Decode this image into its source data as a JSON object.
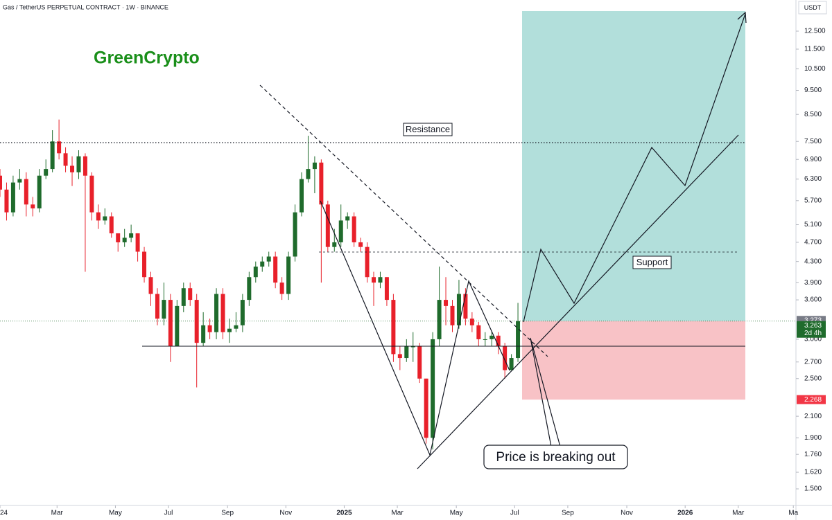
{
  "chart_data": {
    "type": "candlestick",
    "title": "Gas / TetherUS PERPETUAL CONTRACT · 1W · BINANCE",
    "watermark": "GreenCrypto",
    "y_unit": "USDT",
    "log_scale": true,
    "up_color": "#1f6b2c",
    "down_color": "#e8202a",
    "xlim": [
      0,
      121.4
    ],
    "ylim": [
      1.389,
      14.44
    ],
    "xticks": [
      {
        "value": 0,
        "label": "24"
      },
      {
        "value": 8.7,
        "label": "Mar"
      },
      {
        "value": 17.6,
        "label": "May"
      },
      {
        "value": 25.7,
        "label": "Jul"
      },
      {
        "value": 34.7,
        "label": "Sep"
      },
      {
        "value": 43.6,
        "label": "Nov"
      },
      {
        "value": 52.5,
        "label": "2025"
      },
      {
        "value": 60.6,
        "label": "Mar"
      },
      {
        "value": 69.6,
        "label": "May"
      },
      {
        "value": 78.5,
        "label": "Jul"
      },
      {
        "value": 86.6,
        "label": "Sep"
      },
      {
        "value": 95.6,
        "label": "Nov"
      },
      {
        "value": 104.5,
        "label": "2026"
      },
      {
        "value": 112.6,
        "label": "Mar"
      },
      {
        "value": 121,
        "label": "Ma"
      }
    ],
    "yticks": [
      {
        "value": 12.5,
        "label": "12.500"
      },
      {
        "value": 11.5,
        "label": "11.500"
      },
      {
        "value": 10.5,
        "label": "10.500"
      },
      {
        "value": 9.5,
        "label": "9.500"
      },
      {
        "value": 8.5,
        "label": "8.500"
      },
      {
        "value": 7.5,
        "label": "7.500"
      },
      {
        "value": 6.9,
        "label": "6.900"
      },
      {
        "value": 6.3,
        "label": "6.300"
      },
      {
        "value": 5.7,
        "label": "5.700"
      },
      {
        "value": 5.1,
        "label": "5.100"
      },
      {
        "value": 4.7,
        "label": "4.700"
      },
      {
        "value": 4.3,
        "label": "4.300"
      },
      {
        "value": 3.9,
        "label": "3.900"
      },
      {
        "value": 3.6,
        "label": "3.600"
      },
      {
        "value": 3,
        "label": "3.000"
      },
      {
        "value": 2.7,
        "label": "2.700"
      },
      {
        "value": 2.5,
        "label": "2.500"
      },
      {
        "value": 2.1,
        "label": "2.100"
      },
      {
        "value": 1.9,
        "label": "1.900"
      },
      {
        "value": 1.76,
        "label": "1.760"
      },
      {
        "value": 1.62,
        "label": "1.620"
      },
      {
        "value": 1.5,
        "label": "1.500"
      }
    ],
    "price_labels": [
      {
        "value": 3.273,
        "color": "#787b86"
      },
      {
        "value": 3.263,
        "color": "#1f6b2c",
        "countdown": "2d 4h"
      },
      {
        "value": 2.268,
        "color": "#f23645"
      }
    ],
    "annotations": [
      "Resistance",
      "Support",
      "Price is breaking out"
    ],
    "x": [
      0,
      1,
      2,
      3,
      4,
      5,
      6,
      7,
      8,
      9,
      10,
      11,
      12,
      13,
      14,
      15,
      16,
      17,
      18,
      19,
      20,
      21,
      22,
      23,
      24,
      25,
      26,
      27,
      28,
      29,
      30,
      31,
      32,
      33,
      34,
      35,
      36,
      37,
      38,
      39,
      40,
      41,
      42,
      43,
      44,
      45,
      46,
      47,
      48,
      49,
      50,
      51,
      52,
      53,
      54,
      55,
      56,
      57,
      58,
      59,
      60,
      61,
      62,
      63,
      64,
      65,
      66,
      67,
      68,
      69,
      70,
      71,
      72,
      73,
      74,
      75,
      76,
      77,
      78,
      79
    ],
    "open": [
      6.4,
      6.0,
      5.4,
      6.2,
      6.3,
      5.6,
      5.5,
      6.4,
      6.6,
      7.5,
      7.1,
      6.7,
      6.5,
      7.0,
      6.4,
      5.4,
      5.2,
      5.3,
      4.9,
      4.7,
      4.8,
      4.9,
      4.5,
      4.0,
      3.7,
      3.3,
      3.6,
      2.9,
      3.5,
      3.8,
      3.6,
      2.95,
      3.2,
      3.1,
      3.7,
      3.1,
      3.15,
      3.2,
      3.6,
      4.0,
      4.2,
      4.3,
      4.4,
      3.9,
      3.7,
      4.4,
      5.4,
      6.3,
      6.6,
      6.8,
      5.6,
      4.6,
      4.7,
      5.2,
      5.3,
      4.7,
      4.6,
      4.0,
      3.9,
      4.0,
      3.6,
      2.8,
      2.75,
      2.9,
      2.9,
      2.5,
      1.9,
      3.0,
      3.6,
      3.5,
      3.2,
      3.7,
      3.3,
      3.2,
      3.0,
      3.0,
      3.05,
      2.9,
      2.6,
      2.75
    ],
    "high": [
      6.6,
      6.2,
      6.4,
      6.6,
      6.5,
      5.8,
      6.6,
      6.9,
      7.9,
      8.3,
      7.3,
      7.0,
      7.2,
      7.1,
      6.5,
      5.6,
      5.5,
      5.4,
      4.9,
      5.0,
      5.1,
      4.9,
      4.6,
      4.1,
      3.8,
      3.9,
      3.7,
      3.6,
      3.9,
      3.9,
      3.7,
      3.4,
      3.3,
      3.8,
      3.8,
      3.3,
      3.4,
      3.7,
      4.1,
      4.3,
      4.4,
      4.5,
      4.5,
      4.0,
      4.5,
      5.6,
      6.5,
      7.7,
      7.0,
      6.9,
      5.7,
      5.0,
      5.6,
      5.4,
      5.4,
      4.8,
      4.7,
      4.1,
      4.1,
      4.0,
      3.7,
      2.9,
      3.0,
      3.1,
      2.95,
      2.5,
      3.1,
      4.2,
      4.0,
      3.6,
      3.95,
      3.8,
      3.4,
      3.25,
      3.1,
      3.1,
      3.1,
      2.95,
      2.8,
      3.55
    ],
    "low": [
      5.8,
      5.2,
      5.3,
      6.0,
      5.3,
      5.3,
      5.4,
      6.3,
      6.5,
      6.9,
      6.5,
      6.1,
      6.3,
      4.1,
      5.2,
      5.0,
      5.1,
      4.8,
      4.5,
      4.6,
      4.7,
      4.3,
      3.9,
      3.5,
      3.2,
      3.2,
      2.7,
      2.9,
      3.4,
      3.5,
      2.4,
      2.9,
      3.0,
      3.0,
      3.0,
      2.95,
      3.1,
      3.1,
      3.5,
      3.9,
      4.1,
      4.2,
      3.8,
      3.6,
      3.6,
      4.3,
      5.3,
      6.2,
      5.9,
      3.9,
      4.5,
      4.5,
      4.6,
      5.0,
      4.6,
      4.5,
      3.9,
      3.5,
      3.8,
      3.5,
      2.7,
      2.6,
      2.7,
      2.7,
      2.45,
      1.85,
      1.8,
      2.9,
      3.2,
      3.1,
      3.15,
      3.2,
      3.1,
      2.9,
      2.9,
      2.9,
      2.8,
      2.5,
      2.6,
      2.7
    ],
    "close": [
      6.0,
      5.4,
      6.2,
      6.3,
      5.6,
      5.5,
      6.4,
      6.6,
      7.5,
      7.1,
      6.7,
      6.5,
      7.0,
      6.4,
      5.4,
      5.2,
      5.3,
      4.9,
      4.7,
      4.8,
      4.9,
      4.5,
      4.0,
      3.7,
      3.3,
      3.6,
      2.9,
      3.5,
      3.8,
      3.6,
      2.95,
      3.2,
      3.1,
      3.7,
      3.1,
      3.15,
      3.2,
      3.6,
      4.0,
      4.2,
      4.3,
      4.4,
      3.9,
      3.7,
      4.4,
      5.4,
      6.3,
      6.6,
      6.8,
      5.6,
      4.6,
      4.7,
      5.2,
      5.3,
      4.7,
      4.6,
      4.0,
      3.9,
      4.0,
      3.6,
      2.8,
      2.75,
      2.9,
      2.9,
      2.5,
      1.9,
      3.0,
      3.6,
      3.5,
      3.2,
      3.7,
      3.3,
      3.2,
      3.0,
      3.0,
      3.05,
      2.9,
      2.6,
      2.75,
      3.263
    ]
  }
}
